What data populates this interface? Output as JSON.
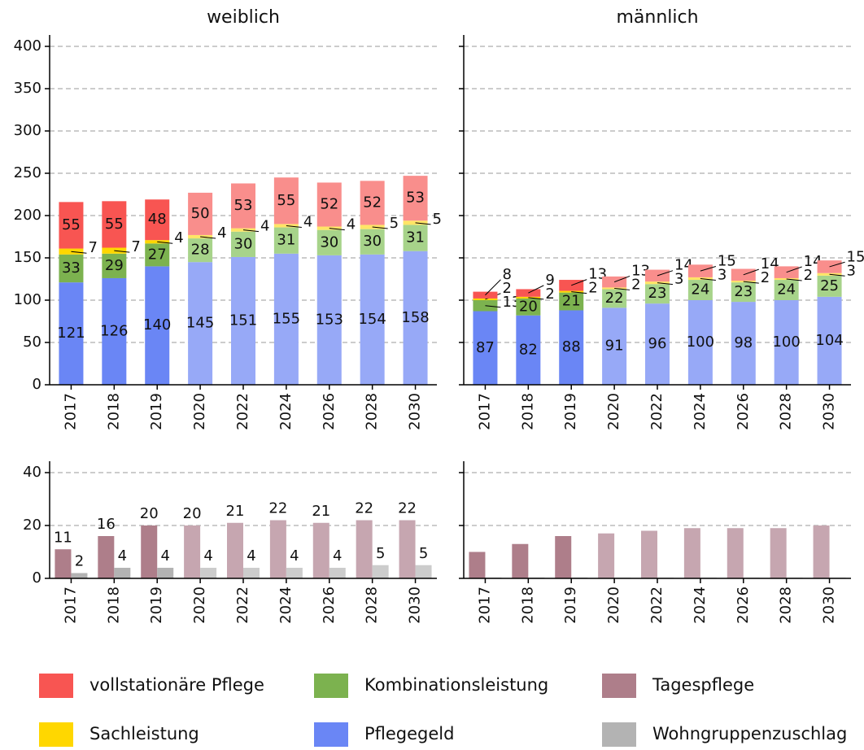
{
  "chart_data": [
    {
      "type": "stacked_bar",
      "title": "weiblich",
      "categories": [
        "2017",
        "2018",
        "2019",
        "2020",
        "2022",
        "2024",
        "2026",
        "2028",
        "2030"
      ],
      "projected": [
        false,
        false,
        false,
        true,
        true,
        true,
        true,
        true,
        true
      ],
      "series": [
        {
          "name": "Pflegegeld",
          "color": "#6a86f5",
          "projection_color": "#97a9f7",
          "values": [
            121,
            126,
            140,
            145,
            151,
            155,
            153,
            154,
            158
          ]
        },
        {
          "name": "Kombinationsleistung",
          "color": "#7cb24f",
          "projection_color": "#a7d38a",
          "values": [
            33,
            29,
            27,
            28,
            30,
            31,
            30,
            30,
            31
          ]
        },
        {
          "name": "Sachleistung",
          "color": "#ffd700",
          "projection_color": "#ffe566",
          "values": [
            7,
            7,
            4,
            4,
            4,
            4,
            4,
            5,
            5
          ]
        },
        {
          "name": "vollstationäre Pflege",
          "color": "#f85552",
          "projection_color": "#f98e8c",
          "values": [
            55,
            55,
            48,
            50,
            53,
            55,
            52,
            52,
            53
          ]
        }
      ],
      "ylim": [
        0,
        400
      ],
      "yticks": [
        0,
        50,
        100,
        150,
        200,
        250,
        300,
        350,
        400
      ],
      "grid": true,
      "ytick_labels": true,
      "data_labels": true
    },
    {
      "type": "stacked_bar",
      "title": "männlich",
      "categories": [
        "2017",
        "2018",
        "2019",
        "2020",
        "2022",
        "2024",
        "2026",
        "2028",
        "2030"
      ],
      "projected": [
        false,
        false,
        false,
        true,
        true,
        true,
        true,
        true,
        true
      ],
      "series": [
        {
          "name": "Pflegegeld",
          "color": "#6a86f5",
          "projection_color": "#97a9f7",
          "values": [
            87,
            82,
            88,
            91,
            96,
            100,
            98,
            100,
            104
          ]
        },
        {
          "name": "Kombinationsleistung",
          "color": "#7cb24f",
          "projection_color": "#a7d38a",
          "values": [
            13,
            20,
            21,
            22,
            23,
            24,
            23,
            24,
            25
          ]
        },
        {
          "name": "Sachleistung",
          "color": "#ffd700",
          "projection_color": "#ffe566",
          "values": [
            2,
            2,
            2,
            2,
            3,
            3,
            2,
            2,
            3
          ]
        },
        {
          "name": "vollstationäre Pflege",
          "color": "#f85552",
          "projection_color": "#f98e8c",
          "values": [
            8,
            9,
            13,
            13,
            14,
            15,
            14,
            14,
            15
          ]
        }
      ],
      "ylim": [
        0,
        400
      ],
      "yticks": [
        0,
        50,
        100,
        150,
        200,
        250,
        300,
        350,
        400
      ],
      "grid": true,
      "ytick_labels": false,
      "data_labels": true
    },
    {
      "type": "grouped_bar",
      "categories": [
        "2017",
        "2018",
        "2019",
        "2020",
        "2022",
        "2024",
        "2026",
        "2028",
        "2030"
      ],
      "projected": [
        false,
        false,
        false,
        true,
        true,
        true,
        true,
        true,
        true
      ],
      "series": [
        {
          "name": "Tagespflege",
          "color": "#ae7e8a",
          "projection_color": "#c6a6b0",
          "values": [
            11,
            16,
            20,
            20,
            21,
            22,
            21,
            22,
            22
          ]
        },
        {
          "name": "Wohngruppenzuschlag",
          "color": "#b3b3b3",
          "projection_color": "#cccccc",
          "values": [
            2,
            4,
            4,
            4,
            4,
            4,
            4,
            5,
            5
          ]
        }
      ],
      "ylim": [
        0,
        40
      ],
      "yticks": [
        0,
        20,
        40
      ],
      "grid": true,
      "ytick_labels": true,
      "data_labels": true
    },
    {
      "type": "grouped_bar",
      "categories": [
        "2017",
        "2018",
        "2019",
        "2020",
        "2022",
        "2024",
        "2026",
        "2028",
        "2030"
      ],
      "projected": [
        false,
        false,
        false,
        true,
        true,
        true,
        true,
        true,
        true
      ],
      "series": [
        {
          "name": "Tagespflege",
          "color": "#ae7e8a",
          "projection_color": "#c6a6b0",
          "values": [
            10,
            13,
            16,
            17,
            18,
            19,
            19,
            19,
            20
          ]
        },
        {
          "name": "Wohngruppenzuschlag",
          "color": "#b3b3b3",
          "projection_color": "#cccccc",
          "values": [
            0.3,
            0.3,
            0.3,
            0.3,
            0.3,
            0.3,
            0.3,
            0.3,
            0.3
          ]
        }
      ],
      "ylim": [
        0,
        40
      ],
      "yticks": [
        0,
        20,
        40
      ],
      "grid": true,
      "ytick_labels": false,
      "data_labels": false
    }
  ]
}
